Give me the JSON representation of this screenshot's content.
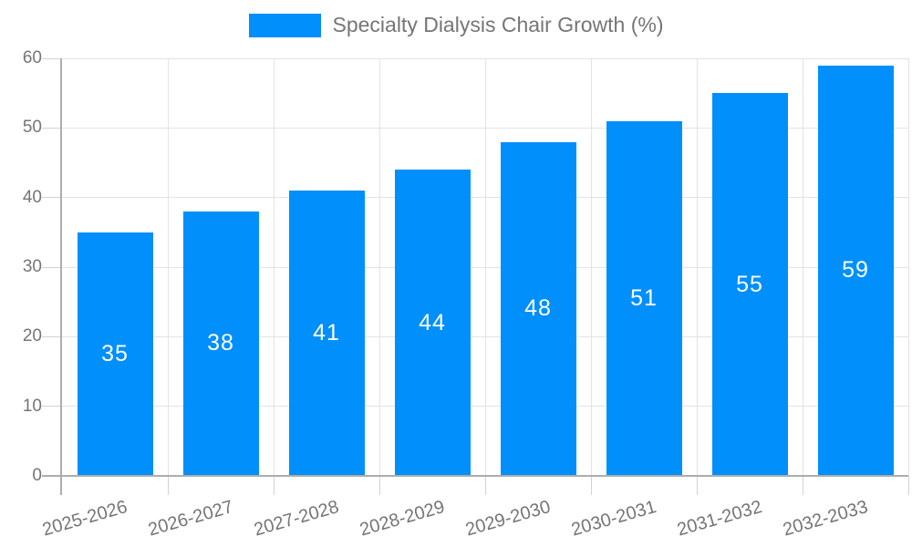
{
  "chart_data": {
    "type": "bar",
    "title": "Specialty Dialysis Chair Growth (%)",
    "categories": [
      "2025-2026",
      "2026-2027",
      "2027-2028",
      "2028-2029",
      "2029-2030",
      "2030-2031",
      "2031-2032",
      "2032-2033"
    ],
    "values": [
      35,
      38,
      41,
      44,
      48,
      51,
      55,
      59
    ],
    "xlabel": "",
    "ylabel": "",
    "ylim": [
      0,
      60
    ],
    "yticks": [
      0,
      10,
      20,
      30,
      40,
      50,
      60
    ],
    "grid": true,
    "legend_position": "top",
    "bar_value_labels": "inside-center",
    "colors": {
      "bar": "#008FFB",
      "grid": "#e3e3e3",
      "axis": "#adadad",
      "tick": "#d2d2d2",
      "text": "#757575",
      "value_label": "#ffffff",
      "background": "#ffffff"
    }
  }
}
